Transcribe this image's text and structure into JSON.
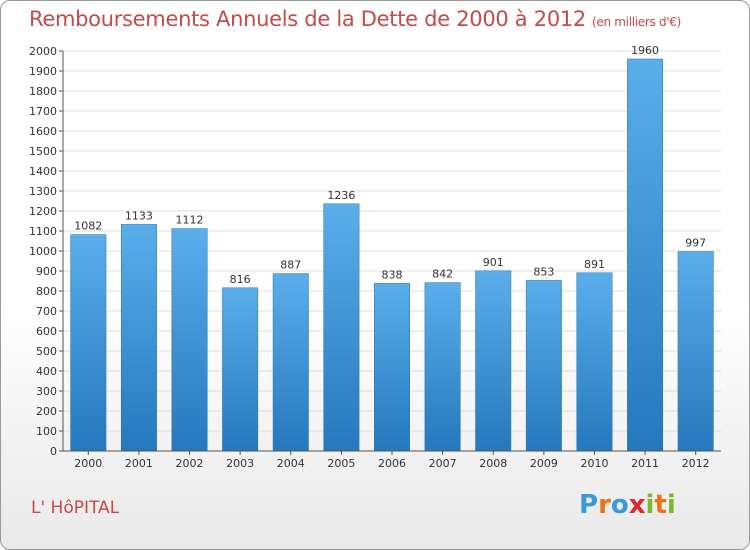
{
  "header": {
    "title": "Remboursements Annuels de la Dette de 2000 à 2012",
    "subtitle": "(en milliers d'€)"
  },
  "footer": {
    "town": "L' HôPITAL",
    "logo_text": "Proxiti",
    "logo_letters": [
      "P",
      "r",
      "o",
      "x",
      "i",
      "t",
      "i"
    ],
    "logo_colors": [
      "#3a9ad9",
      "#e8731c",
      "#3a9ad9",
      "#e0262f",
      "#7cb82f",
      "#e8731c",
      "#7cb82f"
    ]
  },
  "chart_data": {
    "type": "bar",
    "title": "Remboursements Annuels de la Dette de 2000 à 2012",
    "subtitle": "(en milliers d'€)",
    "xlabel": "",
    "ylabel": "",
    "categories": [
      "2000",
      "2001",
      "2002",
      "2003",
      "2004",
      "2005",
      "2006",
      "2007",
      "2008",
      "2009",
      "2010",
      "2011",
      "2012"
    ],
    "values": [
      1082,
      1133,
      1112,
      816,
      887,
      1236,
      838,
      842,
      901,
      853,
      891,
      1960,
      997
    ],
    "ylim": [
      0,
      2000
    ],
    "ytick_step": 100,
    "grid": true,
    "bar_color": "#4a9fe0"
  }
}
